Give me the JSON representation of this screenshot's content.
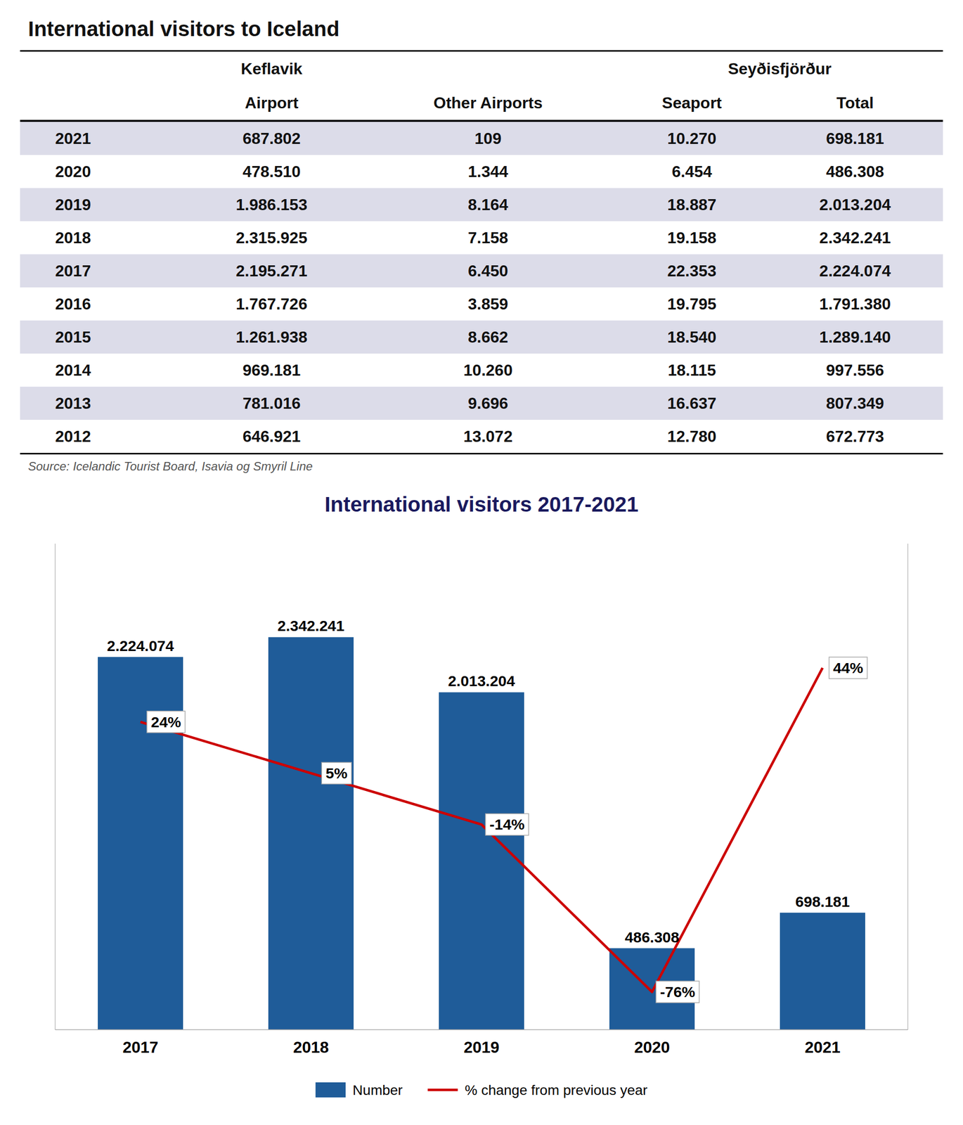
{
  "table": {
    "title": "International visitors to Iceland",
    "column_groups": [
      {
        "label": "Keflavik",
        "columns": [
          "Airport"
        ]
      },
      {
        "label": "Seyðisfjörður",
        "columns": [
          "Seaport",
          "Total"
        ]
      }
    ],
    "columns": [
      null,
      "Airport",
      "Other Airports",
      "Seaport",
      "Total"
    ],
    "rows": [
      [
        "2021",
        "687.802",
        "109",
        "10.270",
        "698.181"
      ],
      [
        "2020",
        "478.510",
        "1.344",
        "6.454",
        "486.308"
      ],
      [
        "2019",
        "1.986.153",
        "8.164",
        "18.887",
        "2.013.204"
      ],
      [
        "2018",
        "2.315.925",
        "7.158",
        "19.158",
        "2.342.241"
      ],
      [
        "2017",
        "2.195.271",
        "6.450",
        "22.353",
        "2.224.074"
      ],
      [
        "2016",
        "1.767.726",
        "3.859",
        "19.795",
        "1.791.380"
      ],
      [
        "2015",
        "1.261.938",
        "8.662",
        "18.540",
        "1.289.140"
      ],
      [
        "2014",
        "969.181",
        "10.260",
        "18.115",
        "997.556"
      ],
      [
        "2013",
        "781.016",
        "9.696",
        "16.637",
        "807.349"
      ],
      [
        "2012",
        "646.921",
        "13.072",
        "12.780",
        "672.773"
      ]
    ],
    "source": "Source: Icelandic Tourist Board, Isavia og Smyril Line"
  },
  "chart_data": {
    "type": "bar",
    "title": "International visitors 2017-2021",
    "categories": [
      "2017",
      "2018",
      "2019",
      "2020",
      "2021"
    ],
    "series": [
      {
        "name": "Number",
        "type": "bar",
        "color": "#1F5C99",
        "values": [
          2224074,
          2342241,
          2013204,
          486308,
          698181
        ],
        "value_labels": [
          "2.224.074",
          "2.342.241",
          "2.013.204",
          "486.308",
          "698.181"
        ]
      },
      {
        "name": "% change from previous year",
        "type": "line",
        "color": "#CC0000",
        "axis": "y2",
        "values": [
          24,
          5,
          -14,
          -76,
          44
        ],
        "value_labels": [
          "24%",
          "5%",
          "-14%",
          "-76%",
          "44%"
        ]
      }
    ],
    "ylim": [
      0,
      2900000
    ],
    "yticks": [],
    "y2lim": [
      -90,
      90
    ],
    "y2ticks": [],
    "tick_labels": "x",
    "data_labels": true,
    "grid": false,
    "legend": "bottom"
  }
}
